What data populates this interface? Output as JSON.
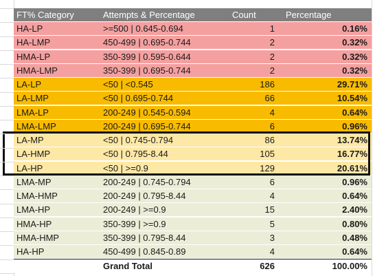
{
  "colors": {
    "header": "#7f7f7f",
    "group_ha": "#f4a0a0",
    "group_la": "#f8bb00",
    "group_la_highlight": "#fde8a6",
    "group_rest": "#ebedd7",
    "box": "#111111"
  },
  "table": {
    "headers": {
      "category": "FT% Category",
      "attempts": "Attempts & Percentage",
      "count": "Count",
      "percentage": "Percentage"
    },
    "rows": [
      {
        "category": "HA-LP",
        "attempts": ">=500 | 0.645-0.694",
        "count": "1",
        "percentage": "0.16%",
        "group": "ha"
      },
      {
        "category": "HA-LMP",
        "attempts": "450-499 | 0.695-0.744",
        "count": "2",
        "percentage": "0.32%",
        "group": "ha"
      },
      {
        "category": "HMA-LP",
        "attempts": "350-399 | 0.595-0.644",
        "count": "2",
        "percentage": "0.32%",
        "group": "ha"
      },
      {
        "category": "HMA-LMP",
        "attempts": "350-399 | 0.695-0.744",
        "count": "2",
        "percentage": "0.32%",
        "group": "ha"
      },
      {
        "category": "LA-LP",
        "attempts": "<50 | <0.545",
        "count": "186",
        "percentage": "29.71%",
        "group": "la"
      },
      {
        "category": "LA-LMP",
        "attempts": "<50 | 0.695-0.744",
        "count": "66",
        "percentage": "10.54%",
        "group": "la"
      },
      {
        "category": "LMA-LP",
        "attempts": "200-249 | 0.545-0.594",
        "count": "4",
        "percentage": "0.64%",
        "group": "la"
      },
      {
        "category": "LMA-LMP",
        "attempts": "200-249 | 0.695-0.744",
        "count": "6",
        "percentage": "0.96%",
        "group": "la"
      },
      {
        "category": "LA-MP",
        "attempts": "<50 | 0.745-0.794",
        "count": "86",
        "percentage": "13.74%",
        "group": "hl"
      },
      {
        "category": "LA-HMP",
        "attempts": "<50 | 0.795-8.44",
        "count": "105",
        "percentage": "16.77%",
        "group": "hl"
      },
      {
        "category": "LA-HP",
        "attempts": "<50 | >=0.9",
        "count": "129",
        "percentage": "20.61%",
        "group": "hl"
      },
      {
        "category": "LMA-MP",
        "attempts": "200-249 | 0.745-0.794",
        "count": "6",
        "percentage": "0.96%",
        "group": "rest"
      },
      {
        "category": "LMA-HMP",
        "attempts": "200-249 | 0.795-8.44",
        "count": "4",
        "percentage": "0.64%",
        "group": "rest"
      },
      {
        "category": "LMA-HP",
        "attempts": "200-249 | >=0.9",
        "count": "15",
        "percentage": "2.40%",
        "group": "rest"
      },
      {
        "category": "HMA-HP",
        "attempts": "350-399 | >=0.9",
        "count": "5",
        "percentage": "0.80%",
        "group": "rest"
      },
      {
        "category": "HMA-HMP",
        "attempts": "350-399 | 0.795-8.44",
        "count": "3",
        "percentage": "0.48%",
        "group": "rest"
      },
      {
        "category": "HA-HP",
        "attempts": "450-499 | 0.845-0.89",
        "count": "4",
        "percentage": "0.64%",
        "group": "rest"
      }
    ],
    "total": {
      "label": "Grand Total",
      "count": "626",
      "percentage": "100.00%"
    }
  }
}
